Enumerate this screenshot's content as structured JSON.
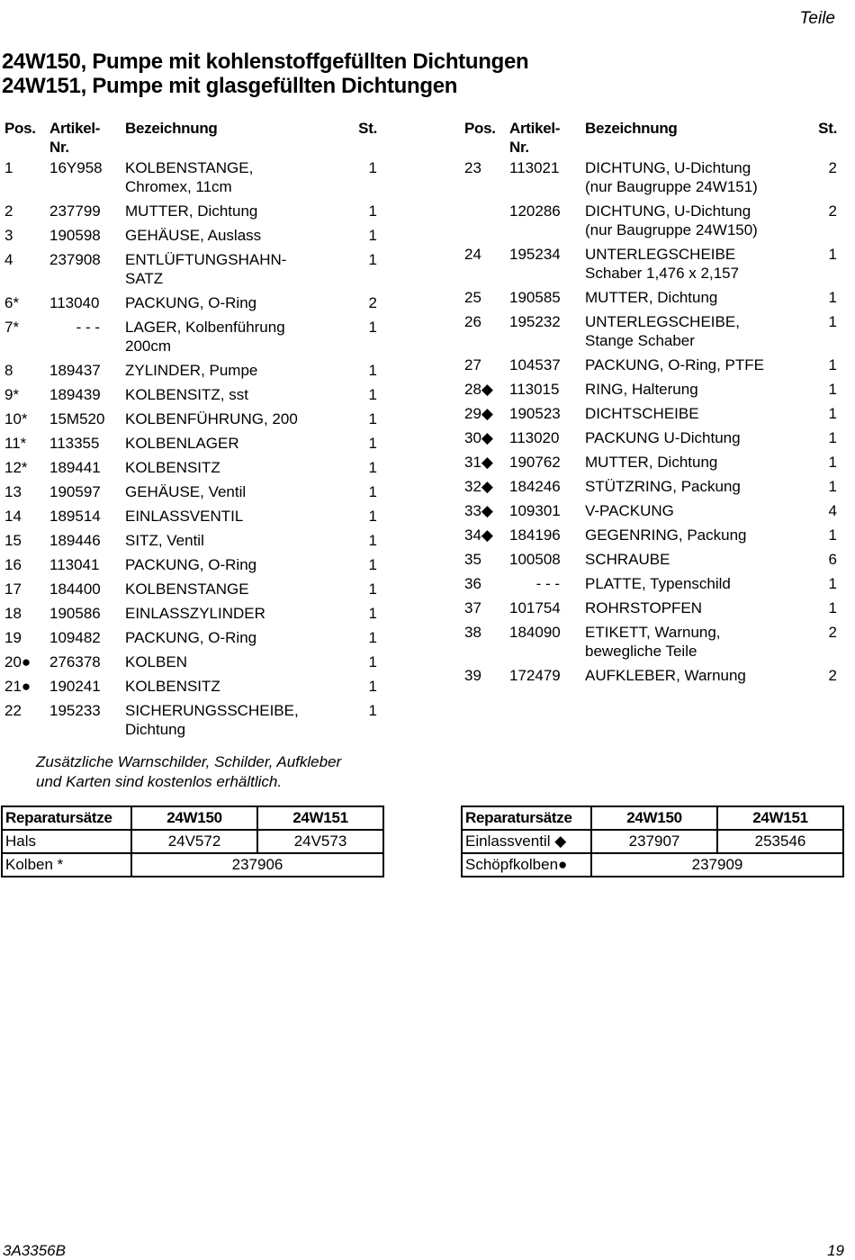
{
  "header": {
    "section": "Teile"
  },
  "title": [
    "24W150, Pumpe mit kohlenstoffgefüllten Dichtungen",
    "24W151, Pumpe mit glasgefüllten Dichtungen"
  ],
  "columns": {
    "pos": "Pos.",
    "art": "Artikel-\nNr.",
    "bez": "Bezeichnung",
    "st": "St."
  },
  "left_parts": [
    [
      "1",
      "16Y958",
      "KOLBENSTANGE,\nChromex, 11cm",
      "1"
    ],
    [
      "2",
      "237799",
      "MUTTER, Dichtung",
      "1"
    ],
    [
      "3",
      "190598",
      "GEHÄUSE, Auslass",
      "1"
    ],
    [
      "4",
      "237908",
      "ENTLÜFTUNGSHAHN-\nSATZ",
      "1"
    ],
    [
      "6*",
      "113040",
      "PACKUNG, O-Ring",
      "2"
    ],
    [
      "7*",
      "- - -",
      "LAGER, Kolbenführung\n200cm",
      "1"
    ],
    [
      "8",
      "189437",
      "ZYLINDER, Pumpe",
      "1"
    ],
    [
      "9*",
      "189439",
      "KOLBENSITZ, sst",
      "1"
    ],
    [
      "10*",
      "15M520",
      "KOLBENFÜHRUNG, 200",
      "1"
    ],
    [
      "11*",
      "113355",
      "KOLBENLAGER",
      "1"
    ],
    [
      "12*",
      "189441",
      "KOLBENSITZ",
      "1"
    ],
    [
      "13",
      "190597",
      "GEHÄUSE, Ventil",
      "1"
    ],
    [
      "14",
      "189514",
      "EINLASSVENTIL",
      "1"
    ],
    [
      "15",
      "189446",
      "SITZ, Ventil",
      "1"
    ],
    [
      "16",
      "113041",
      "PACKUNG, O-Ring",
      "1"
    ],
    [
      "17",
      "184400",
      "KOLBENSTANGE",
      "1"
    ],
    [
      "18",
      "190586",
      "EINLASSZYLINDER",
      "1"
    ],
    [
      "19",
      "109482",
      "PACKUNG, O-Ring",
      "1"
    ],
    [
      "20●",
      "276378",
      "KOLBEN",
      "1"
    ],
    [
      "21●",
      "190241",
      "KOLBENSITZ",
      "1"
    ],
    [
      "22",
      "195233",
      "SICHERUNGSSCHEIBE,\nDichtung",
      "1"
    ]
  ],
  "right_parts": [
    [
      "23",
      "113021",
      "DICHTUNG, U-Dichtung\n(nur Baugruppe 24W151)",
      "2"
    ],
    [
      "",
      "120286",
      "DICHTUNG, U-Dichtung\n(nur Baugruppe 24W150)",
      "2"
    ],
    [
      "24",
      "195234",
      "UNTERLEGSCHEIBE\nSchaber 1,476 x 2,157",
      "1"
    ],
    [
      "25",
      "190585",
      "MUTTER, Dichtung",
      "1"
    ],
    [
      "26",
      "195232",
      "UNTERLEGSCHEIBE,\nStange Schaber",
      "1"
    ],
    [
      "27",
      "104537",
      "PACKUNG, O-Ring, PTFE",
      "1"
    ],
    [
      "28◆",
      "113015",
      "RING, Halterung",
      "1"
    ],
    [
      "29◆",
      "190523",
      "DICHTSCHEIBE",
      "1"
    ],
    [
      "30◆",
      "113020",
      "PACKUNG U-Dichtung",
      "1"
    ],
    [
      "31◆",
      "190762",
      "MUTTER, Dichtung",
      "1"
    ],
    [
      "32◆",
      "184246",
      "STÜTZRING, Packung",
      "1"
    ],
    [
      "33◆",
      "109301",
      "V-PACKUNG",
      "4"
    ],
    [
      "34◆",
      "184196",
      "GEGENRING, Packung",
      "1"
    ],
    [
      "35",
      "100508",
      "SCHRAUBE",
      "6"
    ],
    [
      "36",
      "- - -",
      "PLATTE, Typenschild",
      "1"
    ],
    [
      "37",
      "101754",
      "ROHRSTOPFEN",
      "1"
    ],
    [
      "38",
      "184090",
      "ETIKETT, Warnung,\nbewegliche Teile",
      "2"
    ],
    [
      "39",
      "172479",
      "AUFKLEBER, Warnung",
      "2"
    ]
  ],
  "note": [
    "Zusätzliche Warnschilder, Schilder, Aufkleber",
    "und Karten sind kostenlos erhältlich."
  ],
  "kit_left": {
    "header": [
      "Reparatursätze",
      "24W150",
      "24W151"
    ],
    "rows": [
      [
        "Hals",
        "24V572",
        "24V573"
      ],
      [
        "Kolben *",
        "237906"
      ]
    ]
  },
  "kit_right": {
    "header": [
      "Reparatursätze",
      "24W150",
      "24W151"
    ],
    "rows": [
      [
        "Einlassventil ◆",
        "237907",
        "253546"
      ],
      [
        "Schöpfkolben●",
        "237909"
      ]
    ]
  },
  "footer": {
    "doc": "3A3356B",
    "page": "19"
  }
}
